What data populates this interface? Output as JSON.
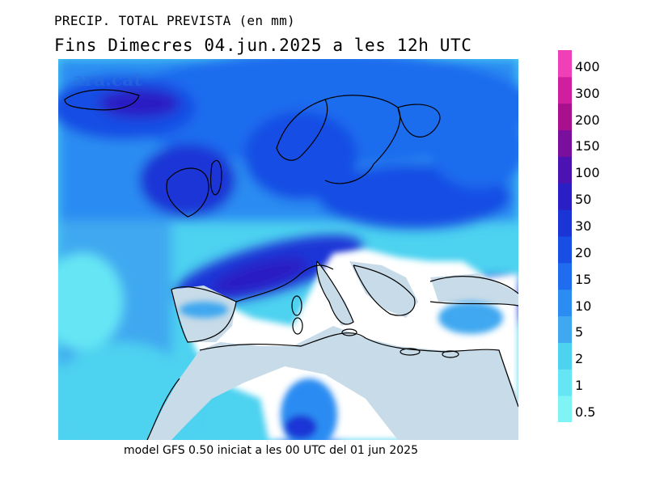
{
  "header": {
    "title_line1": "PRECIP. TOTAL PREVISTA (en mm)",
    "title_line2": "Fins Dimecres 04.jun.2025 a les 12h UTC"
  },
  "map": {
    "watermark": "ara.cat",
    "region": "Europe, North Africa and Mediterranean",
    "land_color": "#c8dbe8",
    "dry_color": "#ffffff"
  },
  "legend": {
    "levels": [
      {
        "label": "0.5",
        "color": "#80f4f4"
      },
      {
        "label": "1",
        "color": "#66e6f4"
      },
      {
        "label": "2",
        "color": "#4dd2f0"
      },
      {
        "label": "5",
        "color": "#3fa8f0"
      },
      {
        "label": "10",
        "color": "#2b8cf2"
      },
      {
        "label": "15",
        "color": "#1f6cee"
      },
      {
        "label": "20",
        "color": "#184ee4"
      },
      {
        "label": "30",
        "color": "#1a34d6"
      },
      {
        "label": "50",
        "color": "#2a1fc4"
      },
      {
        "label": "100",
        "color": "#4a13b2"
      },
      {
        "label": "150",
        "color": "#7a0f9e"
      },
      {
        "label": "200",
        "color": "#a8108e"
      },
      {
        "label": "300",
        "color": "#d01f9e"
      },
      {
        "label": "400",
        "color": "#f040b8"
      }
    ]
  },
  "footer": {
    "text": "model GFS 0.50 iniciat a les 00 UTC del 01 jun 2025"
  }
}
